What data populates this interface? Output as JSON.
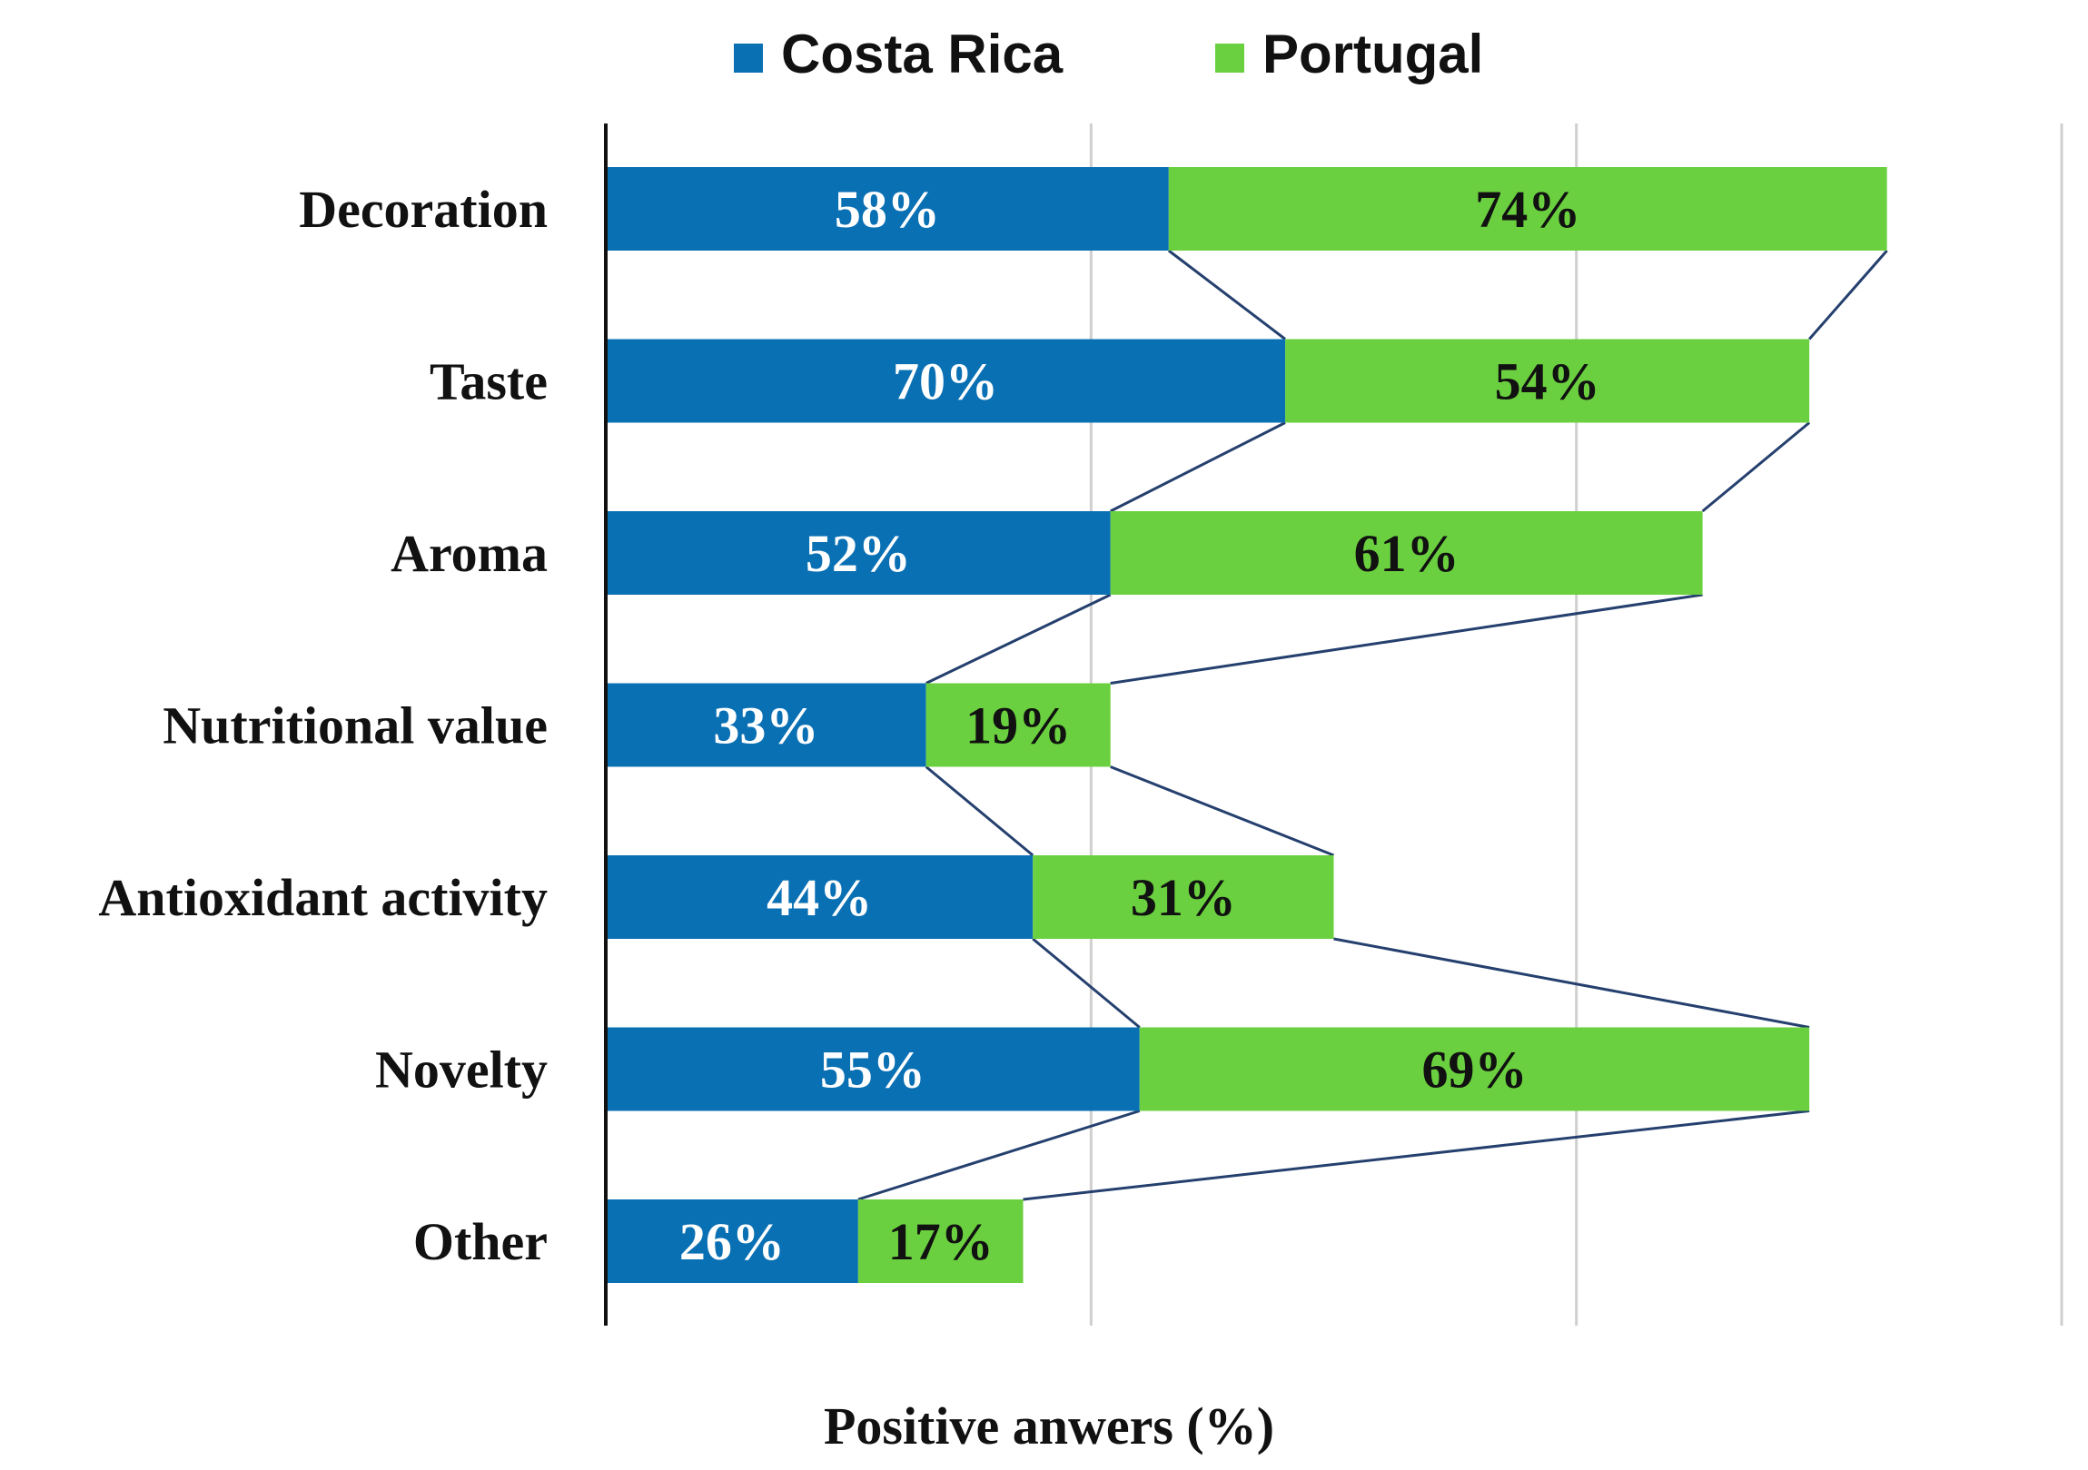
{
  "chart_data": {
    "type": "bar",
    "orientation": "horizontal",
    "stacked": true,
    "title": "",
    "xlabel": "Positive anwers (%)",
    "ylabel": "",
    "xlim": [
      0,
      150
    ],
    "grid": true,
    "legend_position": "top",
    "categories": [
      "Decoration",
      "Taste",
      "Aroma",
      "Nutritional value",
      "Antioxidant activity",
      "Novelty",
      "Other"
    ],
    "series": [
      {
        "name": "Costa Rica",
        "color": "#0a70b4",
        "label_color": "#ffffff",
        "values": [
          58,
          70,
          52,
          33,
          44,
          55,
          26
        ],
        "labels": [
          "58%",
          "70%",
          "52%",
          "33%",
          "44%",
          "55%",
          "26%"
        ]
      },
      {
        "name": "Portugal",
        "color": "#6bd03f",
        "label_color": "#111111",
        "values": [
          74,
          54,
          61,
          19,
          31,
          69,
          17
        ],
        "labels": [
          "74%",
          "54%",
          "61%",
          "19%",
          "31%",
          "69%",
          "17%"
        ]
      }
    ],
    "series_lines": true,
    "series_line_color": "#25406e"
  }
}
